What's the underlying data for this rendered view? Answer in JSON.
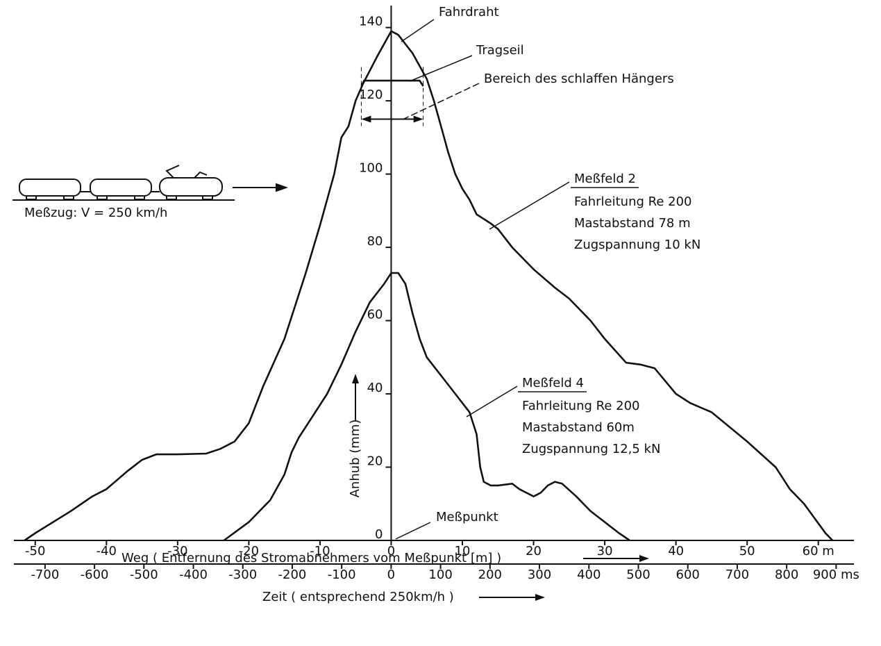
{
  "chart_data": {
    "type": "line",
    "x_label": "Weg ( Entfernung des Stromabnehmers vom Meßpunkt [m] )",
    "x2_label": "Zeit ( entsprechend 250km/h )",
    "y_label": "Anhub (mm)",
    "xlim": [
      -53,
      65
    ],
    "xticks": [
      -50,
      -40,
      -30,
      -20,
      -10,
      0,
      10,
      20,
      30,
      40,
      50,
      {
        "value": 60,
        "label": "60 m"
      }
    ],
    "x2lim": [
      -763,
      936
    ],
    "x2ticks": [
      -700,
      -600,
      -500,
      -400,
      -300,
      -200,
      -100,
      0,
      100,
      200,
      300,
      400,
      500,
      600,
      700,
      800,
      {
        "value": 900,
        "label": "900 ms"
      }
    ],
    "ylim": [
      0,
      146
    ],
    "yticks": [
      0,
      20,
      40,
      60,
      80,
      100,
      120,
      140
    ],
    "color": "#111111",
    "series": [
      {
        "name": "Meßfeld 2",
        "lines": [
          "Fahrleitung Re 200",
          "Mastabstand 78 m",
          "Zugspannung 10 kN"
        ],
        "x": [
          -51.5,
          -50,
          -45,
          -42,
          -40,
          -37,
          -35,
          -33,
          -30,
          -26,
          -24,
          -22,
          -20,
          -18,
          -15,
          -12,
          -10,
          -8,
          -7,
          -6,
          -5,
          -4,
          -2,
          0,
          1,
          3,
          5,
          6,
          7,
          8,
          9,
          10,
          11,
          12,
          14,
          15,
          17,
          20,
          23,
          25,
          28,
          30,
          33,
          35,
          37,
          40,
          42,
          45,
          50,
          54,
          55,
          56,
          58,
          61,
          62
        ],
        "values": [
          0,
          2,
          8,
          12,
          14,
          19,
          22,
          23.5,
          23.5,
          23.7,
          25,
          27,
          32,
          42,
          55,
          73,
          86,
          100,
          110,
          113,
          120,
          124.5,
          132,
          139,
          138,
          133,
          126,
          120,
          113,
          106,
          100,
          96,
          93,
          89,
          86.5,
          85,
          80,
          74,
          69,
          66,
          60,
          55,
          48.5,
          48,
          47,
          40,
          37.5,
          35,
          27,
          20,
          17,
          14,
          10,
          2,
          0
        ]
      },
      {
        "name": "Meßfeld 4",
        "lines": [
          "Fahrleitung Re 200",
          "Mastabstand 60m",
          "Zugspannung 12,5 kN"
        ],
        "x": [
          -23.5,
          -20,
          -17,
          -15,
          -14,
          -13,
          -11,
          -9,
          -7,
          -5,
          -3,
          -1,
          0,
          1,
          2,
          3,
          4,
          5,
          7,
          9,
          11,
          12,
          12.5,
          13,
          14,
          15,
          17,
          18,
          20,
          21,
          22,
          23,
          24,
          26,
          28,
          30,
          32,
          33.5
        ],
        "values": [
          0,
          5,
          11,
          18,
          24,
          28,
          34,
          40,
          48,
          57,
          65,
          70,
          73,
          73,
          70,
          62,
          55,
          50,
          45,
          40,
          35,
          29,
          20,
          16,
          15,
          15,
          15.5,
          14,
          12,
          13,
          15,
          16,
          15.5,
          12,
          8,
          5,
          2,
          0
        ]
      },
      {
        "name": "Tragseil",
        "x": [
          -4.2,
          -3.8,
          4,
          4.5
        ],
        "values": [
          124,
          125.5,
          125.5,
          124
        ]
      }
    ],
    "annotations": [
      {
        "text": "Fahrdraht"
      },
      {
        "text": "Bereich des schlaffen Hängers",
        "x": [
          -4.2,
          4.5
        ],
        "y": 115
      },
      {
        "text": "Meßpunkt"
      },
      {
        "text": "Meßzug: V = 250 km/h"
      }
    ]
  }
}
